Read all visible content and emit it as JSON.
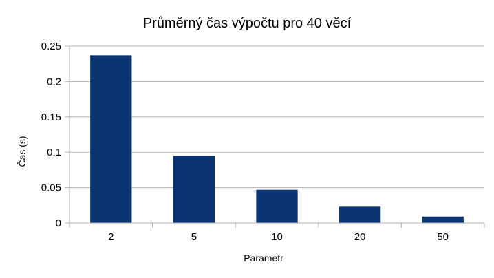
{
  "chart_data": {
    "type": "bar",
    "title": "Průměrný čas výpočtu pro 40 věcí",
    "xlabel": "Parametr",
    "ylabel": "Čas (s)",
    "categories": [
      "2",
      "5",
      "10",
      "20",
      "50"
    ],
    "values": [
      0.237,
      0.095,
      0.047,
      0.023,
      0.009
    ],
    "ylim": [
      0,
      0.25
    ],
    "yticks": [
      0,
      0.05,
      0.1,
      0.15,
      0.2,
      0.25
    ],
    "ytick_labels": [
      "0",
      "0.05",
      "0.1",
      "0.15",
      "0.2",
      "0.25"
    ],
    "grid": true,
    "legend": "none",
    "colors": {
      "bar": "#0b3472",
      "grid": "#b3b3b3",
      "axis": "#b3b3b3"
    }
  }
}
